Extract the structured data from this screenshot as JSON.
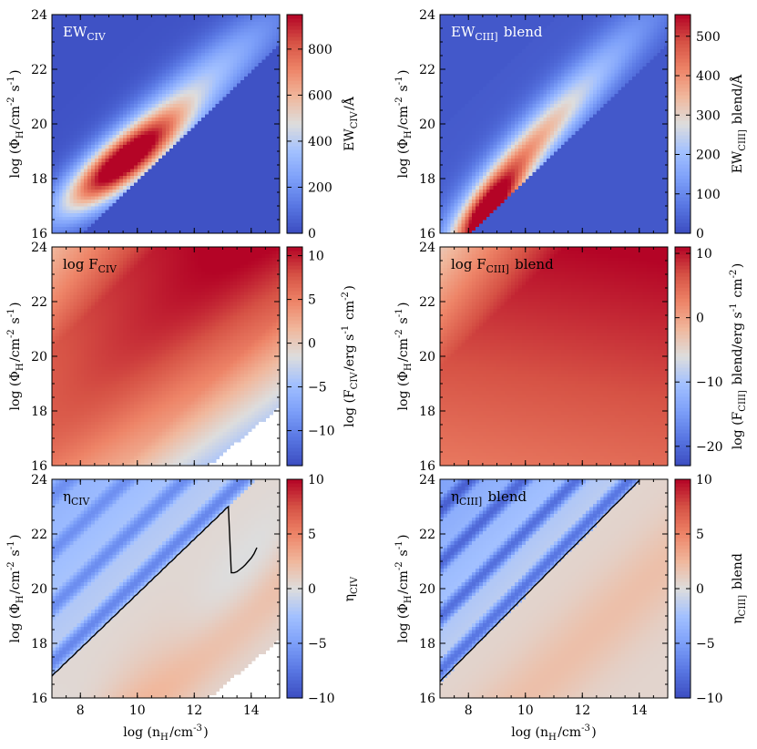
{
  "figure": {
    "x_axis_label": "log (n_H/cm^-3)",
    "y_axis_label": "log (Φ_H/cm^-2 s^-1)",
    "x_ticks": [
      8,
      10,
      12,
      14
    ],
    "y_ticks": [
      16,
      18,
      20,
      22,
      24
    ]
  },
  "chart_data": [
    {
      "type": "heatmap",
      "panel": "top-left",
      "title": "EW_CIV",
      "quantity": "ew_civ",
      "xlim": [
        7,
        15
      ],
      "ylim": [
        16,
        24
      ],
      "colorbar_label": "EW_CIV/Å",
      "colorbar_range": [
        0,
        950
      ],
      "colorbar_ticks": [
        0,
        200,
        400,
        600,
        800
      ],
      "colormap": "coolwarm",
      "peak": {
        "x": 9.3,
        "y": 18.3,
        "value": 950
      }
    },
    {
      "type": "heatmap",
      "panel": "top-right",
      "title": "EW_CIII] blend",
      "quantity": "ew_ciii",
      "xlim": [
        7,
        15
      ],
      "ylim": [
        16,
        24
      ],
      "colorbar_label": "EW_CIII] blend/Å",
      "colorbar_range": [
        0,
        555
      ],
      "colorbar_ticks": [
        0,
        100,
        200,
        300,
        400,
        500
      ],
      "colormap": "coolwarm",
      "peak": {
        "x": 8.6,
        "y": 16.6,
        "value": 555
      }
    },
    {
      "type": "heatmap",
      "panel": "middle-left",
      "title": "log F_CIV",
      "quantity": "f_civ",
      "xlim": [
        7,
        15
      ],
      "ylim": [
        16,
        24
      ],
      "colorbar_label": "log (F_CIV/erg s^-1 cm^-2)",
      "colorbar_range": [
        -14,
        11
      ],
      "colorbar_ticks": [
        -10,
        -5,
        0,
        5,
        10
      ],
      "colormap": "coolwarm"
    },
    {
      "type": "heatmap",
      "panel": "middle-right",
      "title": "log F_CIII] blend",
      "quantity": "f_ciii",
      "xlim": [
        7,
        15
      ],
      "ylim": [
        16,
        24
      ],
      "colorbar_label": "log (F_CIII] blend/erg s^-1 cm^-2)",
      "colorbar_range": [
        -23,
        11
      ],
      "colorbar_ticks": [
        -20,
        -10,
        0,
        10
      ],
      "colormap": "coolwarm"
    },
    {
      "type": "heatmap",
      "panel": "bottom-left",
      "title": "η_CIV",
      "quantity": "eta_civ",
      "xlim": [
        7,
        15
      ],
      "ylim": [
        16,
        24
      ],
      "colorbar_label": "η_CIV",
      "colorbar_range": [
        -10,
        10
      ],
      "colorbar_ticks": [
        -10,
        -5,
        0,
        5,
        10
      ],
      "colormap": "coolwarm",
      "contour_level": 0
    },
    {
      "type": "heatmap",
      "panel": "bottom-right",
      "title": "η_CIII] blend",
      "quantity": "eta_ciii",
      "xlim": [
        7,
        15
      ],
      "ylim": [
        16,
        24
      ],
      "colorbar_label": "η_CIII] blend",
      "colorbar_range": [
        -10,
        10
      ],
      "colorbar_ticks": [
        -10,
        -5,
        0,
        5,
        10
      ],
      "colormap": "coolwarm",
      "contour_level": 0
    }
  ]
}
